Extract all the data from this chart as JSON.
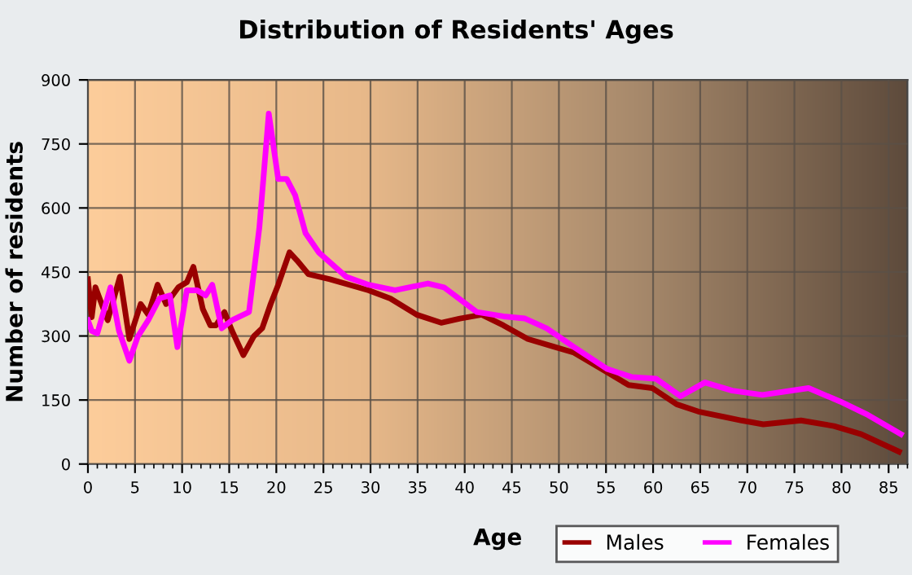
{
  "chart_data": {
    "type": "line",
    "title": "Distribution of Residents' Ages",
    "xlabel": "Age",
    "ylabel": "Number of residents",
    "xlim": [
      0,
      87
    ],
    "xticks": [
      0,
      5,
      10,
      15,
      20,
      25,
      30,
      35,
      40,
      45,
      50,
      55,
      60,
      65,
      70,
      75,
      80,
      85
    ],
    "ylim": [
      0,
      900
    ],
    "yticks": [
      0,
      150,
      300,
      450,
      600,
      750,
      900
    ],
    "grid": true,
    "legend": "bottom right",
    "marker": "none",
    "line_style": "solid",
    "series": [
      {
        "name": "Males",
        "color": "#990000",
        "x": [
          0,
          0.4,
          0.8,
          2.1,
          3.4,
          4.4,
          5.6,
          6.4,
          7.4,
          8.3,
          9.6,
          10.5,
          11.2,
          12.2,
          13.0,
          13.6,
          14.5,
          15.3,
          16.5,
          17.6,
          18.5,
          19.4,
          20.2,
          21.4,
          22.2,
          23.4,
          25.7,
          29.8,
          32.1,
          34.9,
          37.5,
          39.5,
          41.8,
          44.1,
          46.7,
          49.3,
          51.6,
          54.5,
          57.4,
          59.9,
          62.5,
          64.8,
          69.4,
          71.7,
          75.7,
          79.2,
          82.1,
          86.1
        ],
        "values": [
          433,
          344,
          414,
          337,
          439,
          293,
          375,
          350,
          420,
          375,
          414,
          426,
          462,
          363,
          325,
          325,
          356,
          312,
          255,
          299,
          318,
          375,
          420,
          496,
          477,
          445,
          433,
          407,
          388,
          350,
          331,
          341,
          350,
          325,
          293,
          276,
          261,
          223,
          185,
          178,
          140,
          123,
          102,
          93,
          102,
          89,
          70,
          29
        ]
      },
      {
        "name": "Females",
        "color": "#ff00ff",
        "x": [
          0,
          0.4,
          1.0,
          2.4,
          3.3,
          4.4,
          5.3,
          6.4,
          7.6,
          8.7,
          9.5,
          10.5,
          11.6,
          12.5,
          13.2,
          14.2,
          15.3,
          17.1,
          18.2,
          19.2,
          20.2,
          21.1,
          22.0,
          23.1,
          24.5,
          27.4,
          29.8,
          32.6,
          36.1,
          37.8,
          41.3,
          44.1,
          46.4,
          48.7,
          51.6,
          55.1,
          57.7,
          60.3,
          62.9,
          65.5,
          68.4,
          71.6,
          76.5,
          79.9,
          82.8,
          86.3
        ],
        "values": [
          337,
          312,
          306,
          414,
          312,
          242,
          299,
          337,
          388,
          395,
          274,
          407,
          407,
          395,
          420,
          318,
          337,
          356,
          554,
          821,
          668,
          668,
          630,
          541,
          496,
          439,
          420,
          407,
          423,
          414,
          356,
          346,
          341,
          318,
          274,
          223,
          204,
          200,
          159,
          191,
          172,
          162,
          178,
          146,
          115,
          70
        ]
      }
    ]
  }
}
